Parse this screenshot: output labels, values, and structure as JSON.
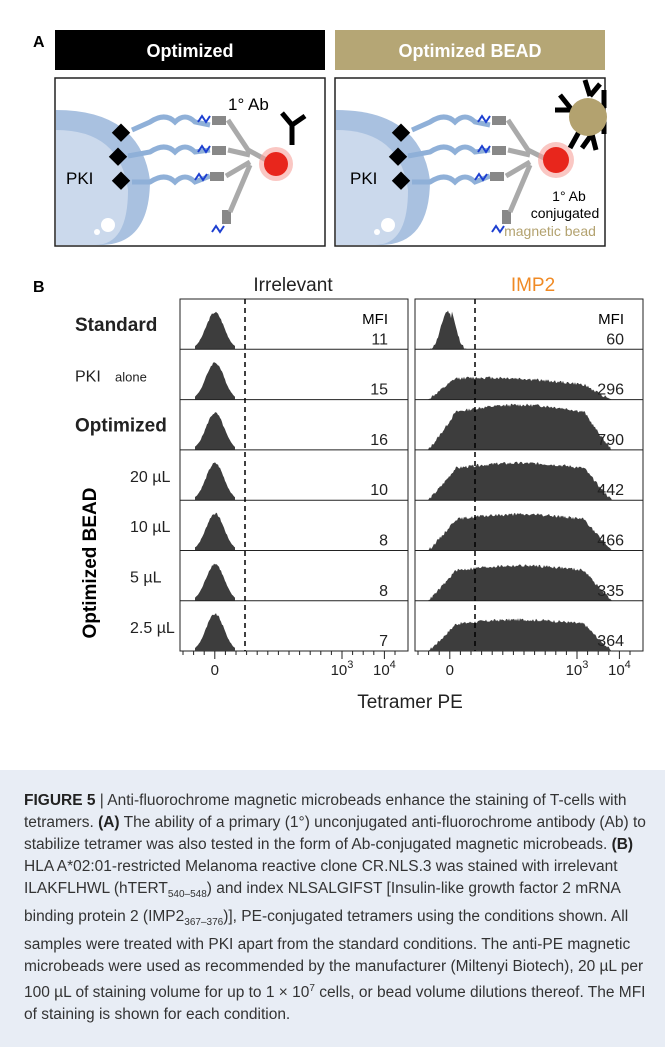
{
  "panel_a": {
    "label": "A",
    "left_title": "Optimized",
    "right_title": "Optimized BEAD",
    "left_ab_label": "1° Ab",
    "pki_label": "PKI",
    "right_ab_label_1": "1° Ab",
    "right_ab_label_2": "conjugated",
    "right_ab_label_3": "magnetic bead",
    "colors": {
      "left_title_bg": "#000000",
      "right_title_bg": "#b5a675",
      "membrane": "#a9c1e0",
      "dye": "#e8261c",
      "bead": "#b3a26f"
    }
  },
  "panel_b": {
    "label": "B",
    "col_irrelevant": "Irrelevant",
    "col_imp2": "IMP2",
    "mfi_header": "MFI",
    "x_axis_label": "Tetramer PE",
    "x_ticks": [
      {
        "text": "0",
        "sup": ""
      },
      {
        "text": "10",
        "sup": "3"
      },
      {
        "text": "10",
        "sup": "4"
      }
    ],
    "vertical_group_label": "Optimized BEAD",
    "rows": [
      {
        "label": "Standard",
        "bold": true,
        "mfi_irr": "11",
        "mfi_imp": "60"
      },
      {
        "label": "PKI",
        "label_small": "alone",
        "bold": false,
        "mfi_irr": "15",
        "mfi_imp": "296"
      },
      {
        "label": "Optimized",
        "bold": true,
        "mfi_irr": "16",
        "mfi_imp": "790"
      },
      {
        "label": "20 µL",
        "bold": false,
        "mfi_irr": "10",
        "mfi_imp": "442"
      },
      {
        "label": "10 µL",
        "bold": false,
        "mfi_irr": "8",
        "mfi_imp": "466"
      },
      {
        "label": "5 µL",
        "bold": false,
        "mfi_irr": "8",
        "mfi_imp": "335"
      },
      {
        "label": "2.5 µL",
        "bold": false,
        "mfi_irr": "7",
        "mfi_imp": "364"
      }
    ],
    "colors": {
      "histogram_fill": "#3d3d3d",
      "imp2_title": "#f08a24"
    }
  },
  "caption": {
    "figure_label": "FIGURE 5",
    "sep": " | ",
    "s1": "Anti-fluorochrome magnetic microbeads enhance the staining of T-cells with tetramers. ",
    "a_label": "(A)",
    "s2": " The ability of a primary (1°) unconjugated anti-fluorochrome antibody (Ab) to stabilize tetramer was also tested in the form of Ab-conjugated magnetic microbeads. ",
    "b_label": "(B)",
    "s3": " HLA A*02:01-restricted Melanoma reactive clone CR.NLS.3 was stained with irrelevant ILAKFLHWL (hTERT",
    "sub1": "540–548",
    "s4": ") and index NLSALGIFST [Insulin-like growth factor 2 mRNA binding protein 2 (IMP2",
    "sub2": "367–376",
    "s5": ")], PE-conjugated tetramers using the conditions shown. All samples were treated with PKI apart from the standard conditions. The anti-PE magnetic microbeads were used as recommended by the manufacturer (Miltenyi Biotech), 20 µL per 100 µL of staining volume for up to 1 × 10",
    "sup1": "7",
    "s6": " cells, or bead volume dilutions thereof. The MFI of staining is shown for each condition."
  }
}
